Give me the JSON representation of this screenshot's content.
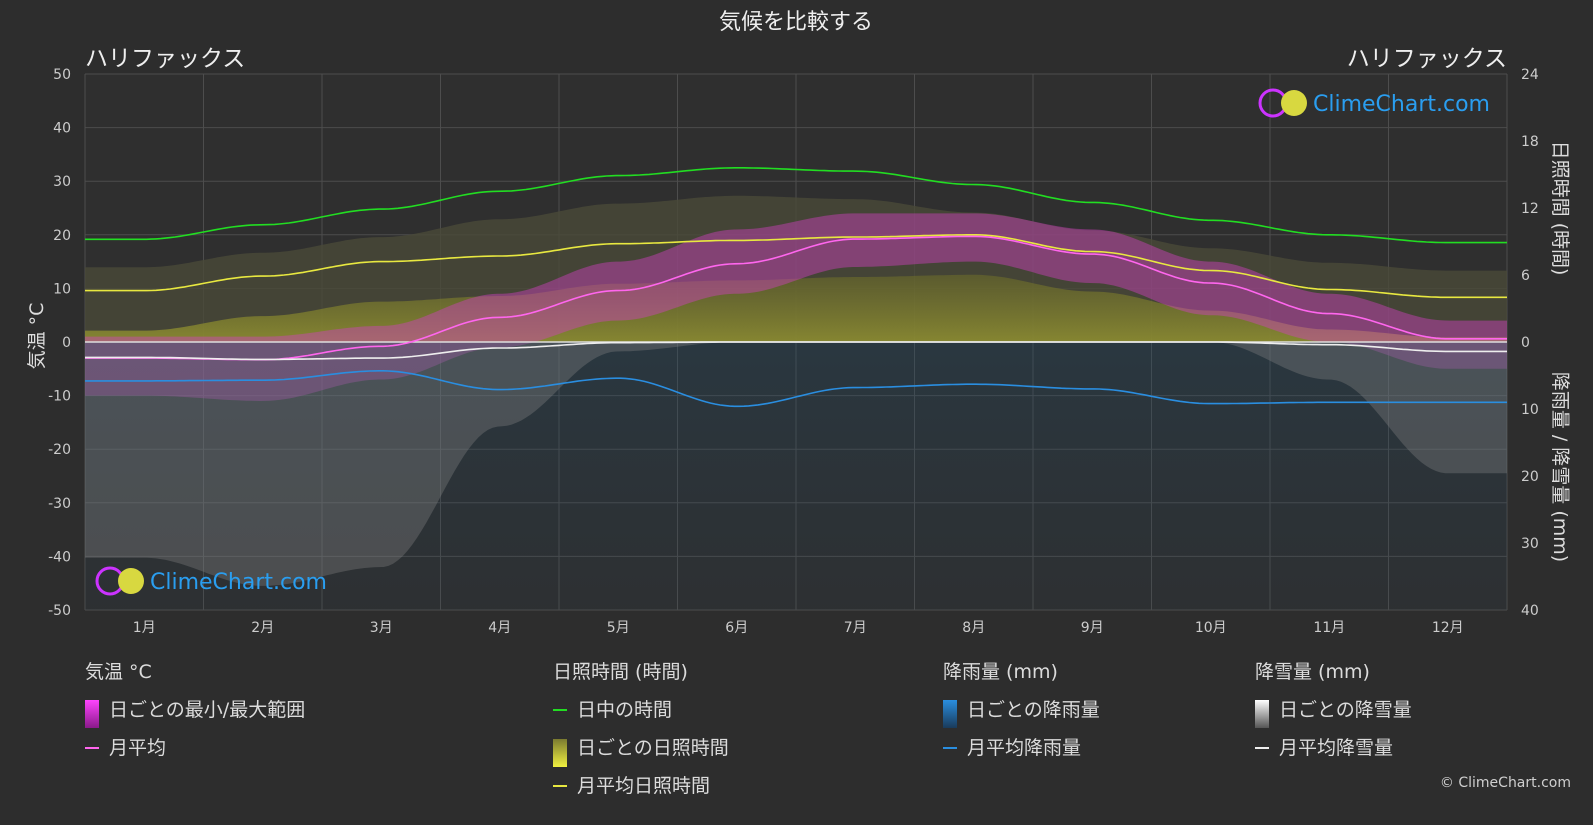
{
  "chart_data": {
    "type": "area",
    "title": "気候を比較する",
    "location_left": "ハリファックス",
    "location_right": "ハリファックス",
    "watermark": "ClimeChart.com",
    "copyright": "© ClimeChart.com",
    "categories": [
      "1月",
      "2月",
      "3月",
      "4月",
      "5月",
      "6月",
      "7月",
      "8月",
      "9月",
      "10月",
      "11月",
      "12月"
    ],
    "y_left": {
      "label": "気温 °C",
      "range": [
        -50,
        50
      ],
      "ticks": [
        "50",
        "40",
        "30",
        "20",
        "10",
        "0",
        "-10",
        "-20",
        "-30",
        "-40",
        "-50"
      ]
    },
    "y_right_top": {
      "label": "日照時間 (時間)",
      "range": [
        0,
        24
      ],
      "ticks": [
        "24",
        "18",
        "12",
        "6",
        "0"
      ]
    },
    "y_right_bottom": {
      "label": "降雨量 / 降雪量 (mm)",
      "range": [
        0,
        40
      ],
      "ticks": [
        "10",
        "20",
        "30",
        "40"
      ]
    },
    "series": [
      {
        "name": "日中の時間",
        "unit": "hours",
        "color": "#22dd22",
        "values": [
          9.2,
          10.5,
          11.9,
          13.5,
          14.9,
          15.6,
          15.3,
          14.1,
          12.5,
          10.9,
          9.6,
          8.9
        ]
      },
      {
        "name": "月平均日照時間",
        "unit": "hours",
        "color": "#e8e840",
        "values": [
          4.6,
          5.9,
          7.2,
          7.7,
          8.8,
          9.1,
          9.4,
          9.6,
          8.1,
          6.4,
          4.7,
          4.0
        ]
      },
      {
        "name": "月平均",
        "unit": "°C",
        "color": "#ff66ee",
        "values": [
          -3.0,
          -3.3,
          -0.8,
          4.6,
          9.6,
          14.6,
          19.2,
          19.7,
          16.4,
          11.0,
          5.3,
          0.6
        ]
      },
      {
        "name": "月平均降雨量",
        "unit": "mm",
        "color": "#2a8ee0",
        "values": [
          5.8,
          5.7,
          4.3,
          7.1,
          5.4,
          9.6,
          6.8,
          6.3,
          7.0,
          9.2,
          9.0,
          9.0
        ]
      },
      {
        "name": "月平均降雪量",
        "unit": "mm",
        "color": "#eeeeee",
        "values": [
          2.3,
          2.6,
          2.4,
          0.9,
          0.1,
          0,
          0,
          0,
          0,
          0,
          0.4,
          1.4
        ]
      }
    ],
    "temp_range": {
      "name": "日ごとの最小/最大範囲",
      "min": [
        -10,
        -11,
        -7,
        -1,
        4,
        9,
        14,
        15,
        11,
        5,
        0,
        -5
      ],
      "max": [
        1,
        1,
        3,
        9,
        15,
        21,
        24,
        24,
        21,
        15,
        9,
        4
      ]
    }
  },
  "legend": {
    "temperature": {
      "title": "気温 °C",
      "items": [
        {
          "label": "日ごとの最小/最大範囲"
        },
        {
          "label": "月平均"
        }
      ]
    },
    "sunshine": {
      "title": "日照時間 (時間)",
      "items": [
        {
          "label": "日中の時間"
        },
        {
          "label": "日ごとの日照時間"
        },
        {
          "label": "月平均日照時間"
        }
      ]
    },
    "rain": {
      "title": "降雨量 (mm)",
      "items": [
        {
          "label": "日ごとの降雨量"
        },
        {
          "label": "月平均降雨量"
        }
      ]
    },
    "snow": {
      "title": "降雪量 (mm)",
      "items": [
        {
          "label": "日ごとの降雪量"
        },
        {
          "label": "月平均降雪量"
        }
      ]
    }
  },
  "colors": {
    "background": "#2d2d2d",
    "grid": "#555555",
    "daylight": "#22dd22",
    "sunshine": "#e8e840",
    "temp": "#ff66ee",
    "rain": "#2a8ee0",
    "snow": "#eeeeee"
  }
}
